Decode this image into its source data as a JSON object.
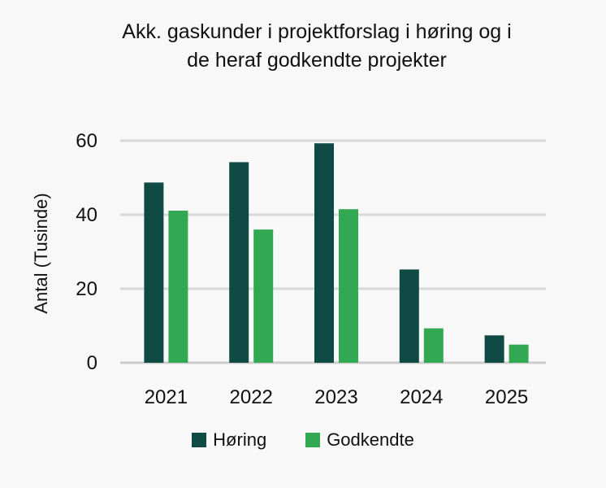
{
  "chart_data": {
    "type": "bar",
    "title_lines": [
      "Akk. gaskunder i projektforslag i høring og i",
      "de heraf godkendte projekter"
    ],
    "xlabel": "",
    "ylabel": "Antal (Tusinde)",
    "categories": [
      "2021",
      "2022",
      "2023",
      "2024",
      "2025"
    ],
    "series": [
      {
        "name": "Høring",
        "values": [
          48.7,
          54.2,
          59.3,
          25.2,
          7.4
        ],
        "color": "#0f4a44"
      },
      {
        "name": "Godkendte",
        "values": [
          41.1,
          36.0,
          41.5,
          9.3,
          4.9
        ],
        "color": "#33a853"
      }
    ],
    "ylim": [
      0,
      60
    ],
    "yticks": [
      "0",
      "20",
      "40",
      "60"
    ],
    "grid": true,
    "legend": "bottom",
    "colors": {
      "grid": "#d9d9d9",
      "axis": "#cccccc",
      "background": "#f8f8f8"
    }
  }
}
